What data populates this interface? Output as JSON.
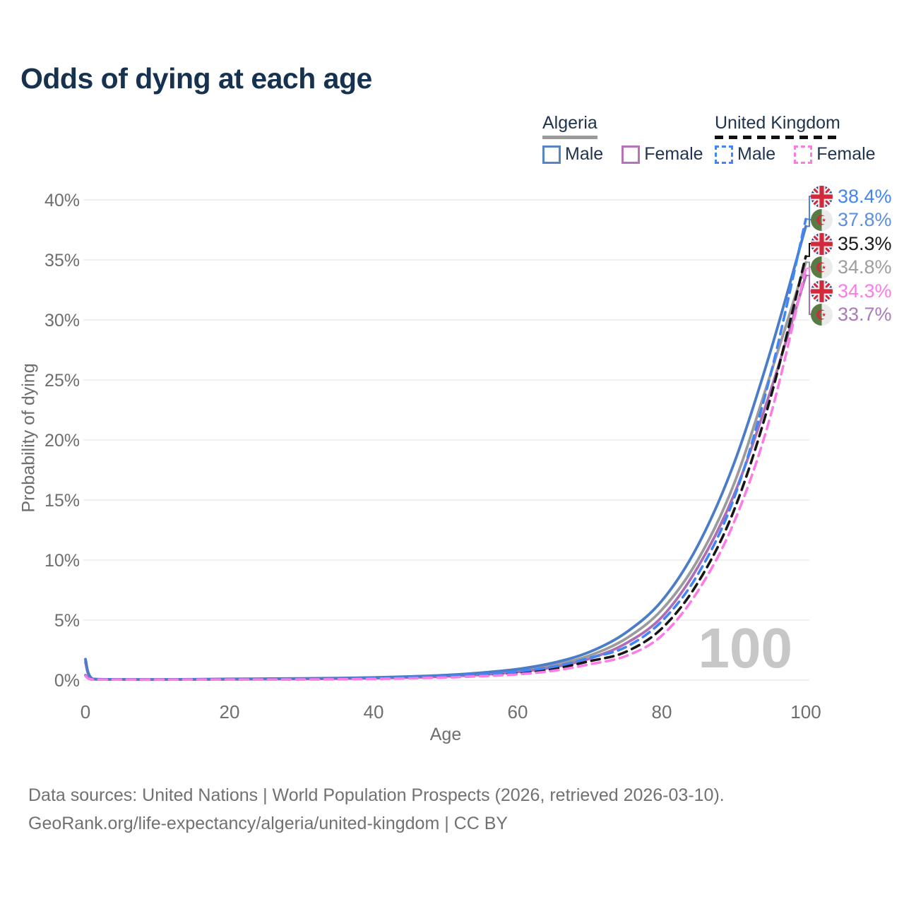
{
  "title": "Odds of dying at each age",
  "watermark": "100",
  "legend": {
    "algeria": {
      "label": "Algeria",
      "male": "Male",
      "female": "Female"
    },
    "uk": {
      "label": "United Kingdom",
      "male": "Male",
      "female": "Female"
    }
  },
  "axes": {
    "x_title": "Age",
    "y_title": "Probability of dying",
    "x_ticks": [
      0,
      20,
      40,
      60,
      80,
      100
    ],
    "y_ticks": [
      0,
      5,
      10,
      15,
      20,
      25,
      30,
      35,
      40
    ]
  },
  "colors": {
    "title": "#16324f",
    "axis_text": "#6e6e6e",
    "grid": "#e7e7e7",
    "watermark": "#c7c7c7",
    "source": "#717171",
    "algeria_male": "#4a7cc7",
    "algeria_total": "#9b9b9b",
    "algeria_female": "#ad6fb3",
    "uk_male": "#4285f4",
    "uk_total": "#161616",
    "uk_female": "#fb7ce4"
  },
  "chart_data": {
    "type": "line",
    "title": "Odds of dying at each age",
    "xlabel": "Age",
    "ylabel": "Probability of dying",
    "xlim": [
      0,
      100
    ],
    "ylim": [
      0,
      40
    ],
    "grid": "horizontal",
    "legend_position": "top-right",
    "y_unit": "%",
    "x": [
      0,
      1,
      5,
      10,
      15,
      20,
      25,
      30,
      35,
      40,
      45,
      50,
      55,
      60,
      65,
      70,
      75,
      80,
      85,
      90,
      95,
      100
    ],
    "series": [
      {
        "id": "algeria_total",
        "name": "Algeria (total)",
        "country": "Algeria",
        "sex": "Total",
        "color": "#9b9b9b",
        "dash": "solid",
        "end_value_pct": 34.8,
        "values": [
          1.6,
          0.09,
          0.05,
          0.05,
          0.06,
          0.08,
          0.1,
          0.12,
          0.15,
          0.19,
          0.26,
          0.36,
          0.53,
          0.8,
          1.26,
          2.05,
          3.45,
          5.85,
          10.0,
          16.3,
          25.3,
          34.8
        ]
      },
      {
        "id": "algeria_female",
        "name": "Algeria Female",
        "country": "Algeria",
        "sex": "Female",
        "color": "#ad6fb3",
        "dash": "solid",
        "end_value_pct": 33.7,
        "values": [
          1.45,
          0.08,
          0.05,
          0.04,
          0.05,
          0.06,
          0.08,
          0.1,
          0.13,
          0.16,
          0.22,
          0.31,
          0.45,
          0.68,
          1.08,
          1.8,
          3.05,
          5.25,
          9.4,
          15.4,
          23.9,
          33.7
        ]
      },
      {
        "id": "algeria_male",
        "name": "Algeria Male",
        "country": "Algeria",
        "sex": "Male",
        "color": "#4a7cc7",
        "dash": "solid",
        "end_value_pct": 37.8,
        "values": [
          1.75,
          0.1,
          0.06,
          0.05,
          0.07,
          0.1,
          0.12,
          0.14,
          0.17,
          0.22,
          0.3,
          0.42,
          0.62,
          0.92,
          1.45,
          2.35,
          3.95,
          6.6,
          11.2,
          18.0,
          27.2,
          37.8
        ]
      },
      {
        "id": "uk_total",
        "name": "United Kingdom (total)",
        "country": "United Kingdom",
        "sex": "Total",
        "color": "#161616",
        "dash": "dashed",
        "end_value_pct": 35.3,
        "values": [
          0.38,
          0.02,
          0.01,
          0.01,
          0.02,
          0.04,
          0.05,
          0.07,
          0.09,
          0.13,
          0.19,
          0.28,
          0.42,
          0.6,
          0.95,
          1.58,
          2.35,
          4.3,
          8.1,
          14.1,
          23.3,
          35.3
        ]
      },
      {
        "id": "uk_male",
        "name": "United Kingdom Male",
        "country": "United Kingdom",
        "sex": "Male",
        "color": "#4285f4",
        "dash": "dashed",
        "end_value_pct": 38.4,
        "values": [
          0.42,
          0.03,
          0.01,
          0.01,
          0.03,
          0.05,
          0.06,
          0.08,
          0.11,
          0.16,
          0.23,
          0.34,
          0.5,
          0.72,
          1.12,
          1.85,
          2.75,
          4.9,
          8.8,
          15.1,
          25.2,
          38.4
        ]
      },
      {
        "id": "uk_female",
        "name": "United Kingdom Female",
        "country": "United Kingdom",
        "sex": "Female",
        "color": "#fb7ce4",
        "dash": "dashed",
        "end_value_pct": 34.3,
        "values": [
          0.34,
          0.02,
          0.01,
          0.01,
          0.02,
          0.03,
          0.04,
          0.05,
          0.07,
          0.1,
          0.15,
          0.22,
          0.33,
          0.48,
          0.78,
          1.32,
          2.0,
          3.7,
          7.4,
          13.1,
          21.8,
          34.3
        ]
      }
    ]
  },
  "end_labels": [
    {
      "flag": "uk",
      "country": "United Kingdom",
      "series": "uk_male",
      "value": "38.4%",
      "color": "#4285f4"
    },
    {
      "flag": "dz",
      "country": "Algeria",
      "series": "algeria_male",
      "value": "37.8%",
      "color": "#5d8edd"
    },
    {
      "flag": "uk",
      "country": "United Kingdom",
      "series": "uk_total",
      "value": "35.3%",
      "color": "#1a1a1a"
    },
    {
      "flag": "dz",
      "country": "Algeria",
      "series": "algeria_total",
      "value": "34.8%",
      "color": "#9e9e9e"
    },
    {
      "flag": "uk",
      "country": "United Kingdom",
      "series": "uk_female",
      "value": "34.3%",
      "color": "#fb7ce4"
    },
    {
      "flag": "dz",
      "country": "Algeria",
      "series": "algeria_female",
      "value": "33.7%",
      "color": "#ab7ab8"
    }
  ],
  "source": {
    "line1": "Data sources: United Nations | World Population Prospects (2026, retrieved 2026-03-10).",
    "line2": "GeoRank.org/life-expectancy/algeria/united-kingdom | CC BY"
  }
}
